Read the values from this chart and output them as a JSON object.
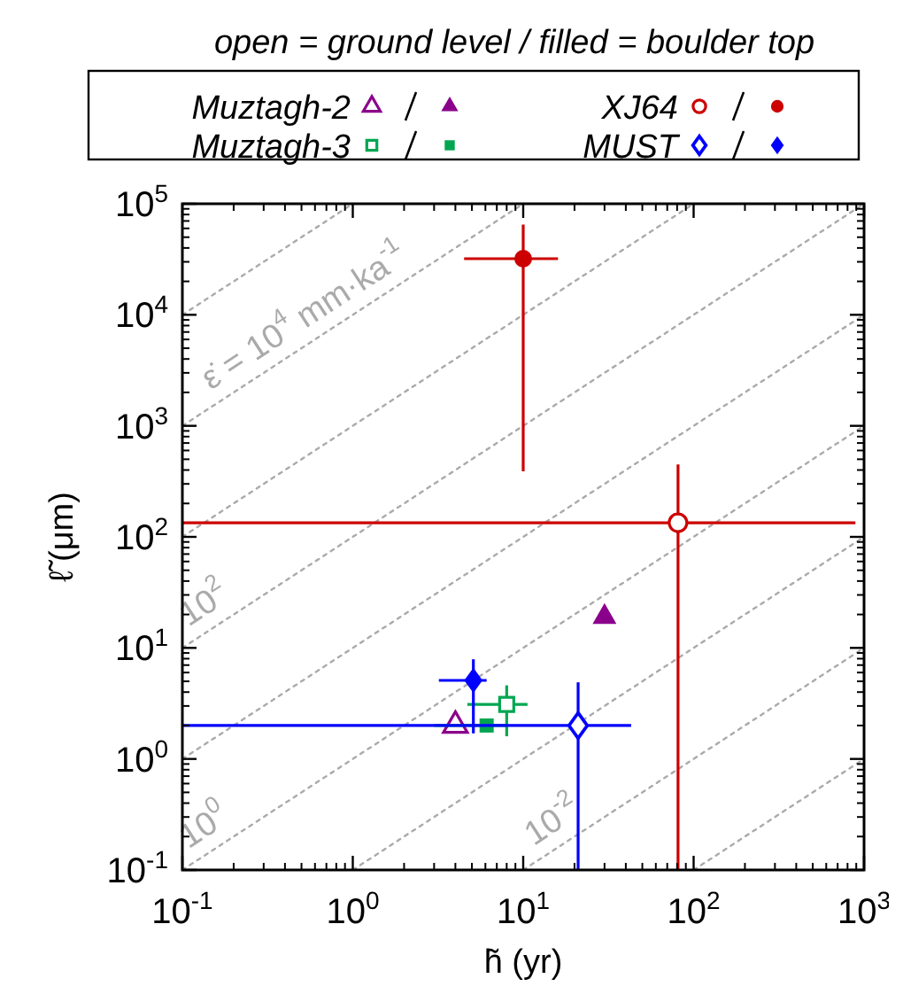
{
  "chart_data": {
    "type": "scatter",
    "title": "open = ground level / filled = boulder top",
    "xlabel": "h̃ (yr)",
    "ylabel": "ℓ̃ (μm)",
    "log": "xy",
    "grid": false,
    "legend": "top",
    "xlim": [
      0.1,
      1000
    ],
    "ylim": [
      0.1,
      100000
    ],
    "xticks": [
      {
        "value": 0.1,
        "label": "10$^{-1}$"
      },
      {
        "value": 1,
        "label": "10$^{0}$"
      },
      {
        "value": 10,
        "label": "10$^{1}$"
      },
      {
        "value": 100,
        "label": "10$^{2}$"
      },
      {
        "value": 1000,
        "label": "10$^{3}$"
      }
    ],
    "yticks": [
      {
        "value": 0.1,
        "label": "10$^{-1}$"
      },
      {
        "value": 1,
        "label": "10$^{0}$"
      },
      {
        "value": 10,
        "label": "10$^{1}$"
      },
      {
        "value": 100,
        "label": "10$^{2}$"
      },
      {
        "value": 1000,
        "label": "10$^{3}$"
      },
      {
        "value": 10000,
        "label": "10$^{4}$"
      },
      {
        "value": 100000,
        "label": "10$^{5}$"
      }
    ],
    "series": [
      {
        "type": "line",
        "color": "#aaaaaa",
        "line_style": "dotted",
        "marker": "none",
        "x": [
          0.1,
          1
        ],
        "values": [
          10000,
          100000
        ]
      },
      {
        "type": "line",
        "name": "ε̇ = 10$^{4}$ mm·ka$^{-1}$",
        "color": "#aaaaaa",
        "line_style": "dotted",
        "marker": "none",
        "x": [
          0.1,
          10
        ],
        "values": [
          1000,
          100000
        ]
      },
      {
        "type": "line",
        "color": "#aaaaaa",
        "line_style": "dotted",
        "marker": "none",
        "x": [
          0.1,
          100
        ],
        "values": [
          100,
          100000
        ]
      },
      {
        "type": "line",
        "name": "10$^{2}$",
        "color": "#aaaaaa",
        "line_style": "dotted",
        "marker": "none",
        "x": [
          0.1,
          1000
        ],
        "values": [
          10,
          100000
        ]
      },
      {
        "type": "line",
        "color": "#aaaaaa",
        "line_style": "dotted",
        "marker": "none",
        "x": [
          0.1,
          1000
        ],
        "values": [
          1,
          10000
        ]
      },
      {
        "type": "line",
        "name": "10$^{0}$",
        "color": "#aaaaaa",
        "line_style": "dotted",
        "marker": "none",
        "x": [
          0.1,
          1000
        ],
        "values": [
          0.1,
          1000
        ]
      },
      {
        "type": "line",
        "color": "#aaaaaa",
        "line_style": "dotted",
        "marker": "none",
        "x": [
          1,
          1000
        ],
        "values": [
          0.1,
          100
        ]
      },
      {
        "type": "line",
        "name": "10$^{-2}$",
        "color": "#aaaaaa",
        "line_style": "dotted",
        "marker": "none",
        "x": [
          10,
          1000
        ],
        "values": [
          0.1,
          10
        ]
      },
      {
        "type": "line",
        "color": "#aaaaaa",
        "line_style": "dotted",
        "marker": "none",
        "x": [
          100,
          1000
        ],
        "values": [
          0.1,
          1
        ]
      },
      {
        "name": "Muztagh-2",
        "marker": "triangle",
        "color": "#8b008b",
        "x": [
          4.0
        ],
        "values": [
          2.0
        ]
      },
      {
        "marker": "triangle",
        "color": "#8b008b",
        "x": [
          30
        ],
        "values": [
          19
        ]
      },
      {
        "name": "Muztagh-3",
        "marker": "square",
        "color": "#00a651",
        "x": [
          8.0
        ],
        "values": [
          3.1
        ],
        "errors": [
          [
            1.6,
            4.6
          ]
        ],
        "xerrors": [
          [
            4.7,
            10.6
          ]
        ]
      },
      {
        "marker": "square",
        "color": "#00a651",
        "x": [
          6.1
        ],
        "values": [
          2.0
        ],
        "xerrors": [
          [
            3.0,
            8.0
          ]
        ]
      },
      {
        "name": "XJ64",
        "marker": "circle",
        "color": "#cc0000",
        "x": [
          81
        ],
        "values": [
          134
        ],
        "errors": [
          [
            0.1,
            450
          ]
        ],
        "xerrors": [
          [
            0.1,
            890
          ]
        ]
      },
      {
        "marker": "circle",
        "color": "#cc0000",
        "x": [
          10
        ],
        "values": [
          32000
        ],
        "errors": [
          [
            390,
            65000
          ]
        ],
        "xerrors": [
          [
            4.5,
            16
          ]
        ]
      },
      {
        "name": "MUST",
        "marker": "diamond",
        "color": "#0000ff",
        "x": [
          21
        ],
        "values": [
          2.0
        ],
        "errors": [
          [
            0.1,
            4.9
          ]
        ],
        "xerrors": [
          [
            0.1,
            43
          ]
        ]
      },
      {
        "marker": "diamond",
        "color": "#0000ff",
        "x": [
          5.1
        ],
        "values": [
          5.1
        ],
        "errors": [
          [
            1.7,
            7.9
          ]
        ],
        "xerrors": [
          [
            3.2,
            6.1
          ]
        ]
      }
    ]
  }
}
